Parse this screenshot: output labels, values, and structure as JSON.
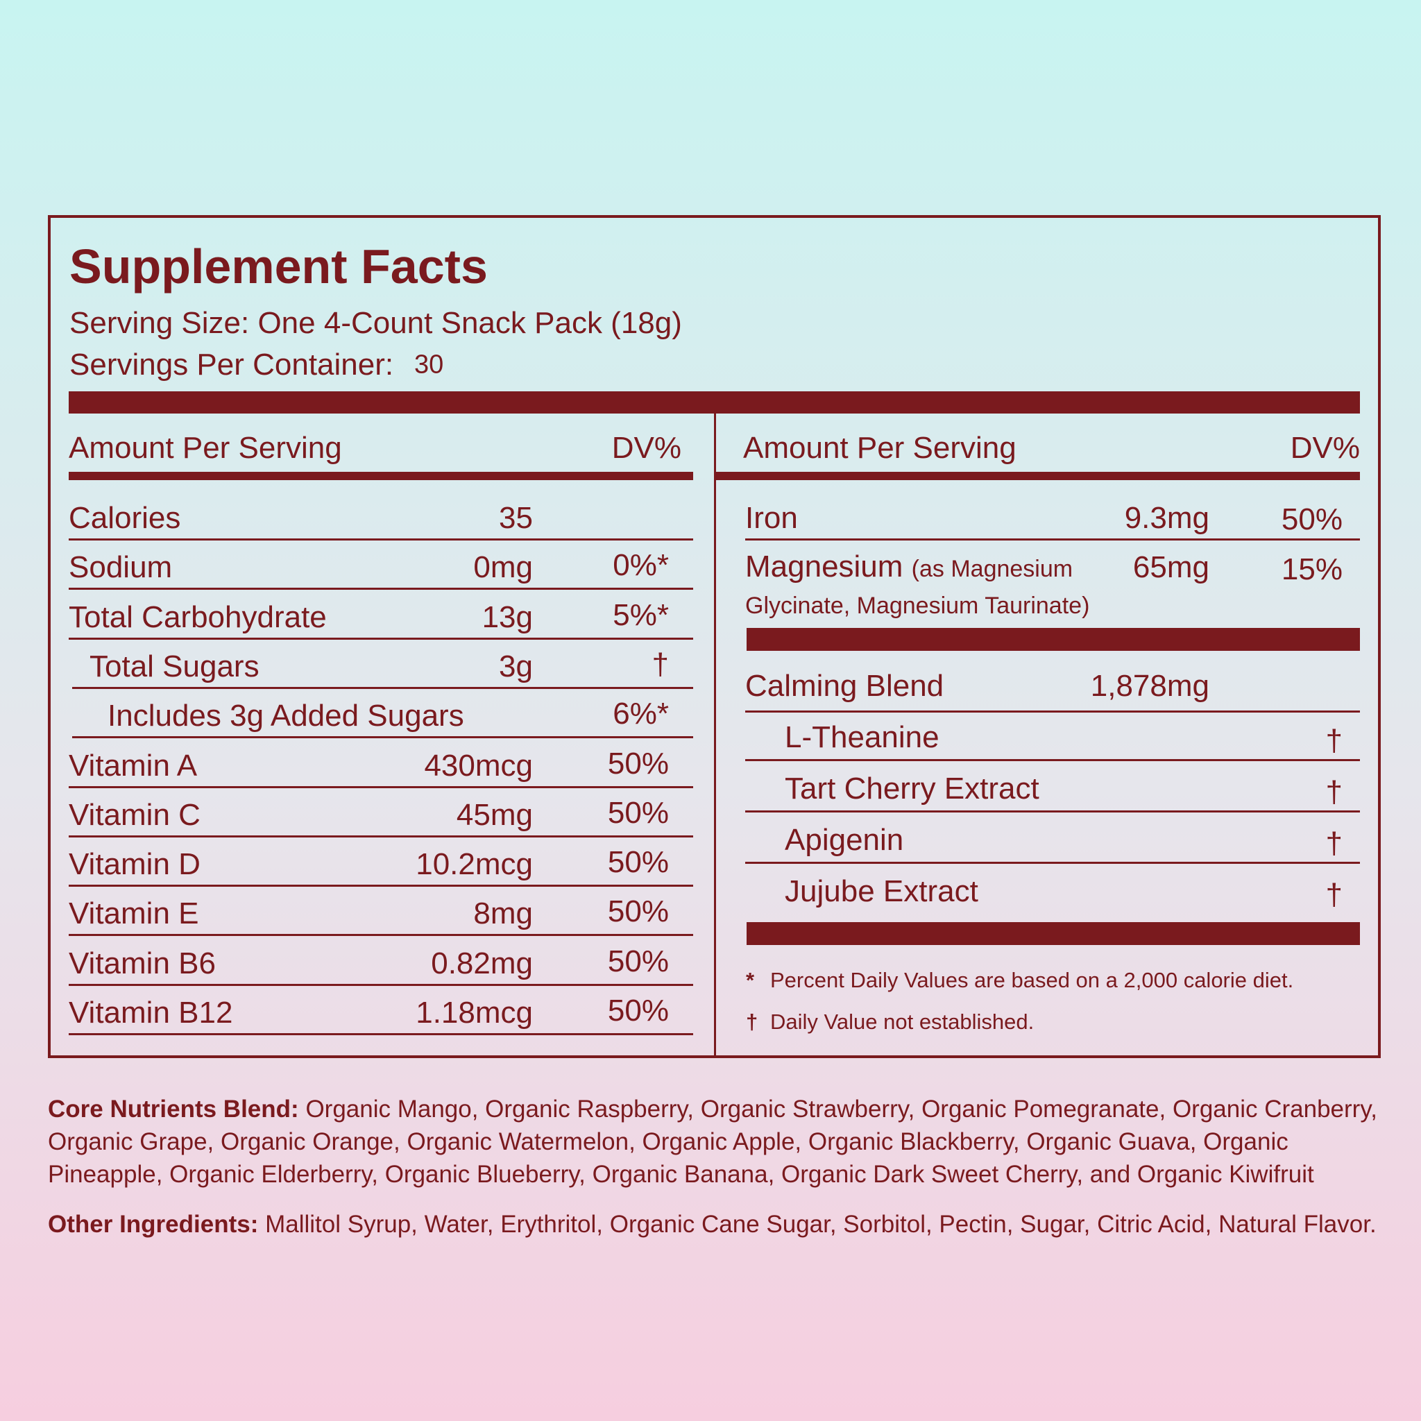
{
  "title": "Supplement Facts",
  "serving_size": "Serving Size: One 4-Count Snack Pack (18g)",
  "servings_per_container": {
    "label": "Servings Per Container:",
    "value": "30"
  },
  "left": {
    "header": {
      "amount": "Amount Per Serving",
      "dv": "DV%"
    },
    "rows": [
      {
        "name": "Calories",
        "amount": "35"
      },
      {
        "name": "Sodium",
        "amount": "0mg",
        "dv": "0%*"
      },
      {
        "name": "Total Carbohydrate",
        "amount": "13g",
        "dv": "5%*"
      },
      {
        "name": "Total Sugars",
        "amount": "3g",
        "dv": "†"
      },
      {
        "name": "Includes 3g Added Sugars",
        "dv": "6%*"
      },
      {
        "name": "Vitamin A",
        "amount": "430mcg",
        "dv": "50%"
      },
      {
        "name": "Vitamin C",
        "amount": "45mg",
        "dv": "50%"
      },
      {
        "name": "Vitamin D",
        "amount": "10.2mcg",
        "dv": "50%"
      },
      {
        "name": "Vitamin E",
        "amount": "8mg",
        "dv": "50%"
      },
      {
        "name": "Vitamin B6",
        "amount": "0.82mg",
        "dv": "50%"
      },
      {
        "name": "Vitamin B12",
        "amount": "1.18mcg",
        "dv": "50%"
      }
    ]
  },
  "right": {
    "header": {
      "amount": "Amount Per Serving",
      "dv": "DV%"
    },
    "rows": [
      {
        "name": "Iron",
        "amount": "9.3mg",
        "dv": "50%"
      },
      {
        "name": "Magnesium",
        "note": "(as Magnesium Glycinate, Magnesium Taurinate)",
        "amount": "65mg",
        "dv": "15%"
      }
    ],
    "blend": {
      "name": "Calming Blend",
      "amount": "1,878mg",
      "items": [
        {
          "name": "L-Theanine",
          "dv": "†"
        },
        {
          "name": "Tart Cherry Extract",
          "dv": "†"
        },
        {
          "name": "Apigenin",
          "dv": "†"
        },
        {
          "name": "Jujube Extract",
          "dv": "†"
        }
      ]
    },
    "footnotes": [
      {
        "mark": "*",
        "text": "Percent Daily Values are based on a 2,000 calorie diet."
      },
      {
        "mark": "†",
        "text": "Daily Value not established."
      }
    ]
  },
  "ingredients": [
    {
      "label": "Core Nutrients Blend:",
      "text": "Organic Mango, Organic Raspberry, Organic Strawberry, Organic Pomegranate, Organic Cranberry, Organic Grape, Organic Orange, Organic Watermelon, Organic Apple, Organic Blackberry, Organic Guava, Organic Pineapple, Organic Elderberry, Organic Blueberry, Organic Banana, Organic Dark Sweet Cherry, and Organic Kiwifruit"
    },
    {
      "label": "Other Ingredients:",
      "text": "Mallitol Syrup, Water, Erythritol, Organic Cane Sugar, Sorbitol, Pectin, Sugar, Citric Acid, Natural Flavor."
    }
  ]
}
